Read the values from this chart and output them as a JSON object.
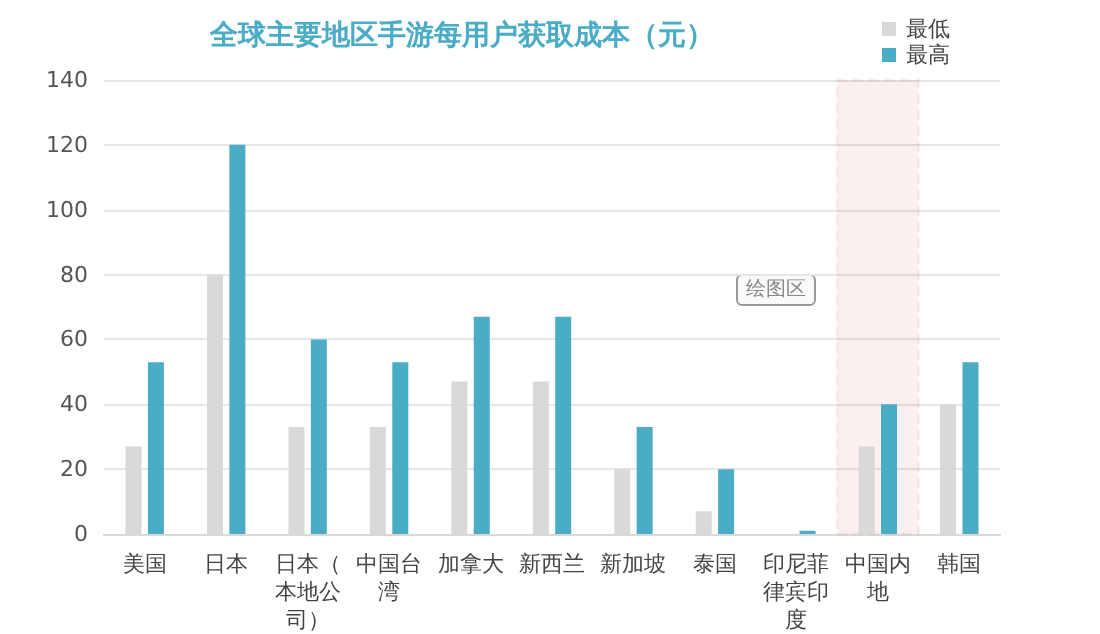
{
  "chart_data": {
    "type": "bar",
    "title": "全球主要地区手游每用户获取成本（元）",
    "categories": [
      "美国",
      "日本",
      "日本（本地公司）",
      "中国台湾",
      "加拿大",
      "新西兰",
      "新加坡",
      "泰国",
      "印尼菲律宾印度",
      "中国内地",
      "韩国"
    ],
    "series": [
      {
        "name": "最低",
        "color": "#d9d9d9",
        "values": [
          27,
          80,
          33,
          33,
          47,
          47,
          20,
          7,
          null,
          27,
          40
        ]
      },
      {
        "name": "最高",
        "color": "#4bacc6",
        "values": [
          53,
          120,
          60,
          53,
          67,
          67,
          33,
          20,
          1,
          40,
          53
        ]
      }
    ],
    "ylim": [
      0,
      140
    ],
    "yticks": [
      0,
      20,
      40,
      60,
      80,
      100,
      120,
      140
    ],
    "grid": "y",
    "legend": "top right",
    "bands": [
      {
        "axis": "x",
        "from": "中国内地",
        "to": "中国内地",
        "color": "#c00000"
      }
    ],
    "annotations": [
      "绘图区"
    ]
  }
}
